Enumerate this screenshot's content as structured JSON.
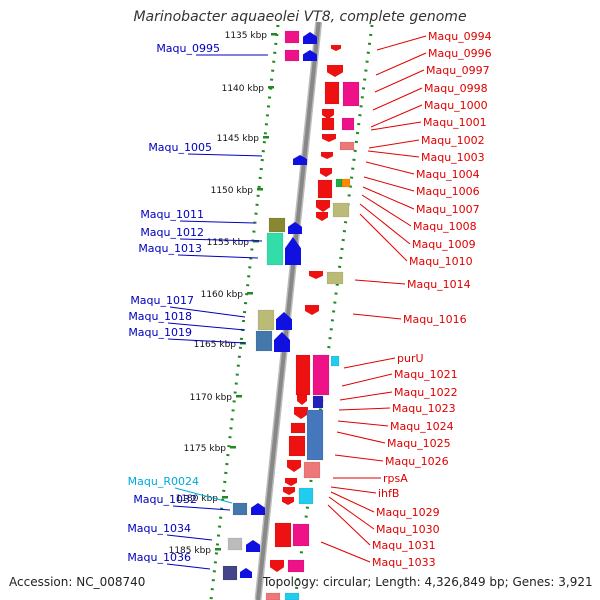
{
  "title": "Marinobacter aquaeolei VT8, complete genome",
  "footer": {
    "accession": "Accession: NC_008740",
    "summary": "Topology: circular; Length: 4,326,849 bp; Genes: 3,921"
  },
  "colors": {
    "forward_gene_label": "#0000c0",
    "reverse_gene_label": "#e00000",
    "rna_label": "#00aadd",
    "forward_arrow": "#1010e0",
    "reverse_arrow": "#ee1111",
    "backbone": "#888888",
    "ticks": "#228822"
  },
  "ticks": [
    "1135 kbp",
    "1140 kbp",
    "1145 kbp",
    "1150 kbp",
    "1155 kbp",
    "1160 kbp",
    "1165 kbp",
    "1170 kbp",
    "1175 kbp",
    "1180 kbp",
    "1185 kbp"
  ],
  "left_labels": [
    {
      "text": "Maqu_0995",
      "type": "gene"
    },
    {
      "text": "Maqu_1005",
      "type": "gene"
    },
    {
      "text": "Maqu_1011",
      "type": "gene"
    },
    {
      "text": "Maqu_1012",
      "type": "gene"
    },
    {
      "text": "Maqu_1013",
      "type": "gene"
    },
    {
      "text": "Maqu_1017",
      "type": "gene"
    },
    {
      "text": "Maqu_1018",
      "type": "gene"
    },
    {
      "text": "Maqu_1019",
      "type": "gene"
    },
    {
      "text": "Maqu_R0024",
      "type": "rna"
    },
    {
      "text": "Maqu_1032",
      "type": "gene"
    },
    {
      "text": "Maqu_1034",
      "type": "gene"
    },
    {
      "text": "Maqu_1036",
      "type": "gene"
    }
  ],
  "right_labels": [
    {
      "text": "Maqu_0994"
    },
    {
      "text": "Maqu_0996"
    },
    {
      "text": "Maqu_0997"
    },
    {
      "text": "Maqu_0998"
    },
    {
      "text": "Maqu_1000"
    },
    {
      "text": "Maqu_1001"
    },
    {
      "text": "Maqu_1002"
    },
    {
      "text": "Maqu_1003"
    },
    {
      "text": "Maqu_1004"
    },
    {
      "text": "Maqu_1006"
    },
    {
      "text": "Maqu_1007"
    },
    {
      "text": "Maqu_1008"
    },
    {
      "text": "Maqu_1009"
    },
    {
      "text": "Maqu_1010"
    },
    {
      "text": "Maqu_1014"
    },
    {
      "text": "Maqu_1016"
    },
    {
      "text": "purU"
    },
    {
      "text": "Maqu_1021"
    },
    {
      "text": "Maqu_1022"
    },
    {
      "text": "Maqu_1023"
    },
    {
      "text": "Maqu_1024"
    },
    {
      "text": "Maqu_1025"
    },
    {
      "text": "Maqu_1026"
    },
    {
      "text": "rpsA"
    },
    {
      "text": "ihfB"
    },
    {
      "text": "Maqu_1029"
    },
    {
      "text": "Maqu_1030"
    },
    {
      "text": "Maqu_1031"
    },
    {
      "text": "Maqu_1033"
    }
  ]
}
